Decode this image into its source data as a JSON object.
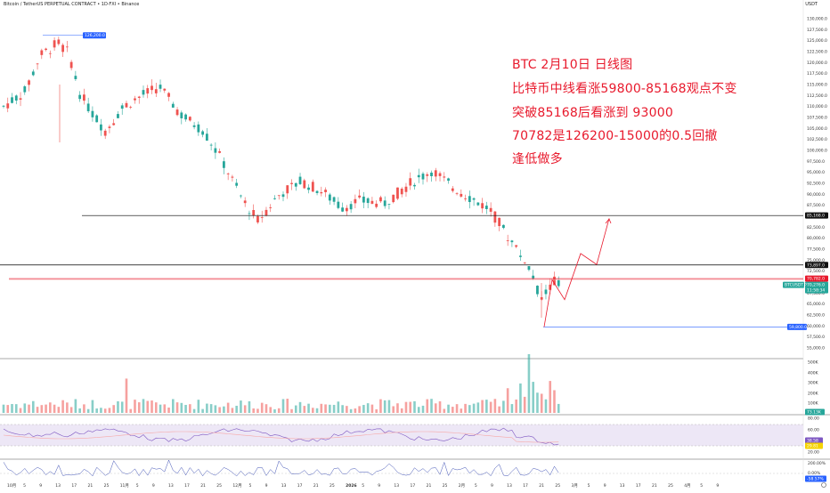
{
  "header": {
    "symbol_line": "Bitcoin / TetherUS PERPETUAL CONTRACT • 1D·FXI • Binance",
    "currency": "USDT"
  },
  "annotation": {
    "lines": [
      "BTC  2月10日  日线图",
      "比特币中线看涨59800-85168观点不变",
      "突破85168后看涨到 93000",
      "70782是126200-15000的0.5回撤",
      "逢低做多"
    ]
  },
  "price_axis": {
    "ticks": [
      "130,000.0",
      "127,500.0",
      "125,000.0",
      "122,500.0",
      "120,000.0",
      "117,500.0",
      "115,000.0",
      "112,500.0",
      "110,000.0",
      "107,500.0",
      "105,000.0",
      "102,500.0",
      "100,000.0",
      "97,500.0",
      "95,000.0",
      "92,500.0",
      "90,000.0",
      "87,500.0",
      "85,000.0",
      "82,500.0",
      "80,000.0",
      "77,500.0",
      "75,000.0",
      "72,500.0",
      "70,000.0",
      "67,500.0",
      "65,000.0",
      "62,500.0",
      "60,000.0",
      "57,500.0",
      "55,000.0"
    ],
    "badges": {
      "level_85168": "85,168.0",
      "level_73897": "73,897.0",
      "level_70782": "70,782.0",
      "last_price": "70,276.0",
      "last_countdown": "11:58:34",
      "low_label": "59,800.0",
      "high_label": "126,200.0",
      "cursor_label": "BTCUSDT.P"
    }
  },
  "volume_axis": {
    "ticks": [
      "500K",
      "400K",
      "300K",
      "200K",
      "100K"
    ],
    "last": "73.13K"
  },
  "rsi_axis": {
    "ticks": [
      "80.00",
      "60.00",
      "20.00"
    ],
    "value1": "38.58",
    "value2": "29.81"
  },
  "osc_axis": {
    "ticks": [
      "200.00%",
      "0.00%"
    ],
    "value": "-58.57%"
  },
  "time_axis": {
    "labels": [
      "10月",
      "5",
      "9",
      "13",
      "17",
      "21",
      "25",
      "11月",
      "5",
      "9",
      "13",
      "17",
      "21",
      "25",
      "12月",
      "5",
      "9",
      "13",
      "17",
      "21",
      "25",
      "2026",
      "5",
      "9",
      "13",
      "17",
      "21",
      "25",
      "2月",
      "5",
      "9",
      "13",
      "17",
      "21",
      "25",
      "3月",
      "5",
      "9",
      "13",
      "17",
      "21",
      "25",
      "4月",
      "5",
      "9"
    ]
  },
  "colors": {
    "up": "#26a69a",
    "down": "#ef5350",
    "annotation": "#e8192c",
    "badge_blue": "#2962ff",
    "rsi_line": "#7e57c2",
    "rsi_band": "#ede7f6",
    "ma_line": "#f7a8a8"
  },
  "icons": [
    "chart-settings-icon"
  ]
}
